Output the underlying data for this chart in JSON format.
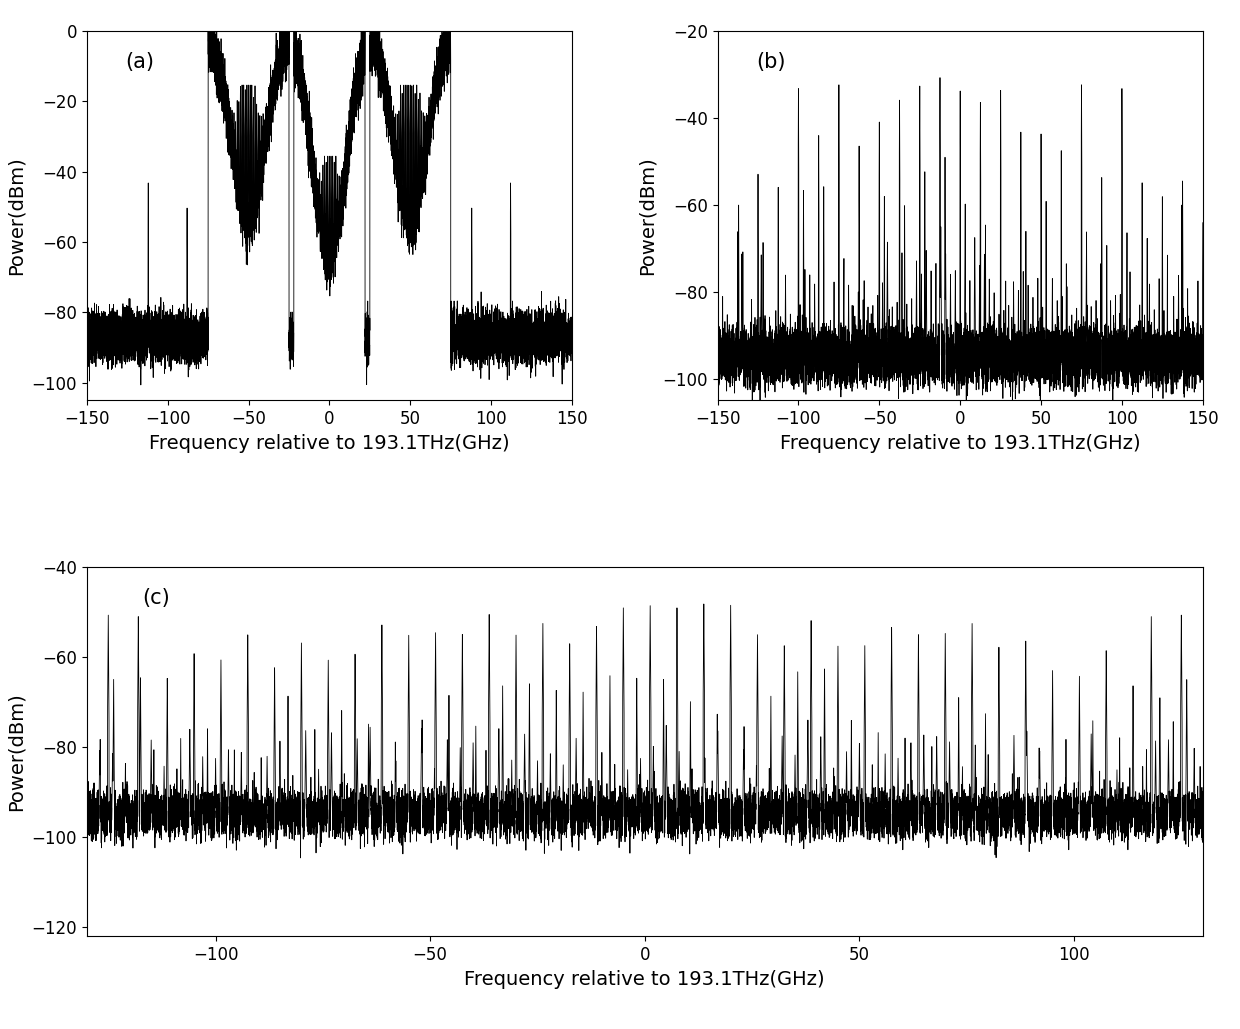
{
  "subplot_a": {
    "label": "(a)",
    "xlim": [
      -150,
      150
    ],
    "ylim": [
      -105,
      0
    ],
    "yticks": [
      0,
      -20,
      -40,
      -60,
      -80,
      -100
    ],
    "xticks": [
      -150,
      -100,
      -50,
      0,
      50,
      100,
      150
    ],
    "ylabel": "Power(dBm)",
    "xlabel": "Frequency relative to 193.1THz(GHz)"
  },
  "subplot_b": {
    "label": "(b)",
    "xlim": [
      -150,
      150
    ],
    "ylim": [
      -105,
      -20
    ],
    "yticks": [
      -20,
      -40,
      -60,
      -80,
      -100
    ],
    "xticks": [
      -150,
      -100,
      -50,
      0,
      50,
      100,
      150
    ],
    "ylabel": "Power(dBm)",
    "xlabel": "Frequency relative to 193.1THz(GHz)"
  },
  "subplot_c": {
    "label": "(c)",
    "xlim": [
      -130,
      130
    ],
    "ylim": [
      -122,
      -40
    ],
    "yticks": [
      -40,
      -60,
      -80,
      -100,
      -120
    ],
    "xticks": [
      -100,
      -50,
      0,
      50,
      100
    ],
    "ylabel": "Power(dBm)",
    "xlabel": "Frequency relative to 193.1THz(GHz)"
  },
  "background_color": "#ffffff",
  "line_color": "#000000",
  "linewidth": 0.6,
  "label_fontsize": 14,
  "tick_fontsize": 12
}
